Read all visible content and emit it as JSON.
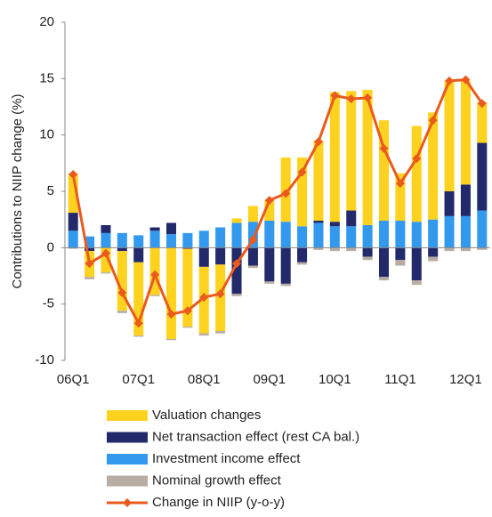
{
  "chart_data": {
    "type": "stacked-bar-line",
    "y_label": "Contributions to NIIP change (%)",
    "categories": [
      "06Q1",
      null,
      null,
      null,
      "07Q1",
      null,
      null,
      null,
      "08Q1",
      null,
      null,
      null,
      "09Q1",
      null,
      null,
      null,
      "10Q1",
      null,
      null,
      null,
      "11Q1",
      null,
      null,
      null,
      "12Q1",
      null
    ],
    "series": [
      {
        "name": "Valuation changes",
        "color": "#ffd21f",
        "values": [
          3.5,
          -2.3,
          -2.2,
          -5.3,
          -6.5,
          -4.2,
          -8.1,
          -6.9,
          -5.9,
          -5.9,
          0.4,
          1.4,
          1.8,
          5.7,
          6.1,
          7.1,
          11.5,
          10.6,
          12.0,
          8.9,
          4.2,
          8.5,
          9.5,
          9.8,
          9.2,
          3.6
        ]
      },
      {
        "name": "Net transaction effect (rest CA bal.)",
        "color": "#232a6b",
        "values": [
          1.6,
          -0.3,
          0.7,
          -0.3,
          -1.3,
          0.3,
          1.0,
          -0.1,
          -1.7,
          -1.5,
          -4.1,
          -1.6,
          -3.0,
          -3.2,
          -1.3,
          0.2,
          0.4,
          1.4,
          -0.8,
          -2.6,
          -1.1,
          -2.9,
          -0.8,
          2.2,
          2.8,
          6.0
        ]
      },
      {
        "name": "Investment income effect",
        "color": "#3399ee",
        "values": [
          1.5,
          1.0,
          1.3,
          1.3,
          1.1,
          1.5,
          1.2,
          1.3,
          1.5,
          1.8,
          2.2,
          2.3,
          2.4,
          2.3,
          1.9,
          2.2,
          1.9,
          1.9,
          2.0,
          2.4,
          2.4,
          2.3,
          2.5,
          2.8,
          2.8,
          3.3
        ]
      },
      {
        "name": "Nominal growth effect",
        "color": "#b8aca3",
        "values": [
          -0.1,
          -0.2,
          -0.1,
          -0.2,
          -0.1,
          -0.1,
          -0.1,
          -0.1,
          -0.2,
          -0.2,
          -0.2,
          -0.2,
          -0.2,
          -0.2,
          -0.2,
          -0.2,
          -0.3,
          -0.3,
          -0.3,
          -0.3,
          -0.5,
          -0.4,
          -0.4,
          -0.3,
          -0.3,
          -0.2
        ]
      },
      {
        "name": "Change in NIIP (y-o-y)",
        "color": "#ea5a1c",
        "kind": "line",
        "values": [
          6.5,
          -1.4,
          -0.5,
          -4.0,
          -6.7,
          -2.4,
          -5.9,
          -5.6,
          -4.4,
          -4.1,
          -1.4,
          0.7,
          4.2,
          4.8,
          6.7,
          9.4,
          13.5,
          13.2,
          13.3,
          8.8,
          5.7,
          7.9,
          11.3,
          14.8,
          14.9,
          12.8
        ]
      }
    ],
    "ylim": [
      -10,
      20
    ],
    "yticks": [
      -10,
      -5,
      0,
      5,
      10,
      15,
      20
    ],
    "grid": false
  }
}
